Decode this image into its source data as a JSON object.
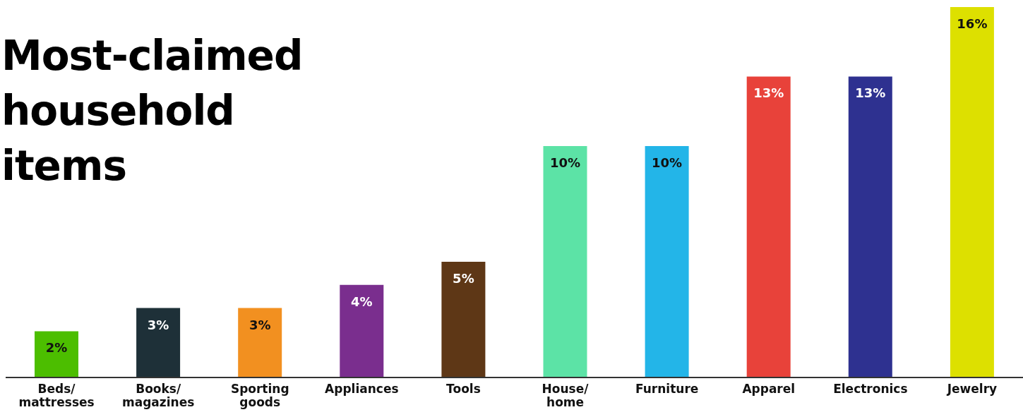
{
  "chart_data": {
    "type": "bar",
    "title": "Most-claimed household items",
    "categories": [
      "Beds/mattresses",
      "Books/magazines",
      "Sporting goods",
      "Appliances",
      "Tools",
      "House/home",
      "Furniture",
      "Apparel",
      "Electronics",
      "Jewelry"
    ],
    "values": [
      2,
      3,
      3,
      4,
      5,
      10,
      10,
      13,
      13,
      16
    ],
    "value_labels": [
      "2%",
      "3%",
      "3%",
      "4%",
      "5%",
      "10%",
      "10%",
      "13%",
      "13%",
      "16%"
    ],
    "colors": [
      "#4cbe00",
      "#1e3038",
      "#f29020",
      "#7a2e8e",
      "#5e3716",
      "#5ce3a6",
      "#23b5e8",
      "#e8423a",
      "#2e3190",
      "#dde000"
    ],
    "grid": false,
    "legend": false
  }
}
